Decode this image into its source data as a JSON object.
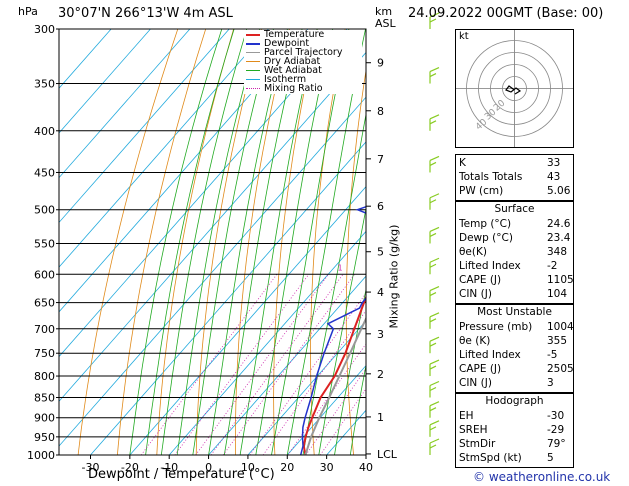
{
  "header": {
    "title": "30°07'N  266°13'W  4m  ASL",
    "date": "24.09.2022  00GMT  (Base: 00)",
    "hpa_label": "hPa",
    "km_label": "km",
    "asl_label": "ASL"
  },
  "footer": {
    "copyright": "© weatheronline.co.uk"
  },
  "colors": {
    "temperature": "#dd2222",
    "dewpoint": "#2233cc",
    "parcel": "#999999",
    "dry_adiabat": "#e08a1a",
    "wet_adiabat": "#22aa22",
    "isotherm": "#22aadd",
    "mixing_ratio": "#cc22aa",
    "wind": "#88cc22"
  },
  "chart_data": {
    "type": "line",
    "xlabel": "Dewpoint / Temperature (°C)",
    "ylabel_right": "Mixing Ratio (g/kg)",
    "x_ticks": [
      -30,
      -20,
      -10,
      0,
      10,
      20,
      30,
      40
    ],
    "xlim": [
      -38,
      40
    ],
    "pressure_levels": [
      300,
      350,
      400,
      450,
      500,
      550,
      600,
      650,
      700,
      750,
      800,
      850,
      900,
      950,
      1000
    ],
    "ylim": [
      300,
      1000
    ],
    "km_ticks": [
      {
        "label": "9",
        "p": 330
      },
      {
        "label": "8",
        "p": 378
      },
      {
        "label": "7",
        "p": 433
      },
      {
        "label": "6",
        "p": 495
      },
      {
        "label": "5",
        "p": 563
      },
      {
        "label": "4",
        "p": 631
      },
      {
        "label": "3",
        "p": 710
      },
      {
        "label": "2",
        "p": 795
      },
      {
        "label": "1",
        "p": 898
      },
      {
        "label": "LCL",
        "p": 997
      }
    ],
    "mixing_ratio_labels": [
      {
        "label": "1",
        "t": -7
      },
      {
        "label": "2",
        "t": 2
      },
      {
        "label": "3",
        "t": 7.5
      },
      {
        "label": "4",
        "t": 11
      },
      {
        "label": "5",
        "t": 14.5
      },
      {
        "label": "8",
        "t": 20.5
      },
      {
        "label": "10",
        "t": 24
      },
      {
        "label": "15",
        "t": 30
      },
      {
        "label": "20",
        "t": 34
      },
      {
        "label": "25",
        "t": 37
      }
    ],
    "legend": [
      "Temperature",
      "Dewpoint",
      "Parcel Trajectory",
      "Dry Adiabat",
      "Wet Adiabat",
      "Isotherm",
      "Mixing Ratio"
    ],
    "series": [
      {
        "name": "Temperature",
        "points": [
          [
            1000,
            24.6
          ],
          [
            975,
            22.2
          ],
          [
            950,
            20.6
          ],
          [
            925,
            19.2
          ],
          [
            900,
            18.0
          ],
          [
            850,
            15.6
          ],
          [
            800,
            14.4
          ],
          [
            750,
            12.0
          ],
          [
            700,
            8.8
          ],
          [
            650,
            5.4
          ],
          [
            600,
            2.0
          ],
          [
            550,
            -2.0
          ],
          [
            500,
            -6.5
          ],
          [
            450,
            -12.0
          ],
          [
            400,
            -18.0
          ],
          [
            350,
            -25.0
          ],
          [
            300,
            -33.0
          ]
        ]
      },
      {
        "name": "Dewpoint",
        "points": [
          [
            1000,
            23.4
          ],
          [
            975,
            22.0
          ],
          [
            950,
            19.8
          ],
          [
            925,
            17.8
          ],
          [
            900,
            16.2
          ],
          [
            850,
            13.2
          ],
          [
            800,
            9.8
          ],
          [
            750,
            6.6
          ],
          [
            700,
            3.5
          ],
          [
            690,
            1.0
          ],
          [
            660,
            5.5
          ],
          [
            650,
            5.0
          ],
          [
            600,
            4.5
          ],
          [
            560,
            1.0
          ],
          [
            550,
            -4.0
          ],
          [
            520,
            -5.0
          ],
          [
            500,
            -17.0
          ],
          [
            450,
            2.0
          ],
          [
            420,
            -16.0
          ],
          [
            400,
            -11.0
          ],
          [
            395,
            -20.0
          ],
          [
            350,
            -28.0
          ],
          [
            300,
            -31.0
          ]
        ]
      },
      {
        "name": "Parcel Trajectory",
        "points": [
          [
            1000,
            24.6
          ],
          [
            950,
            22.0
          ],
          [
            900,
            19.8
          ],
          [
            850,
            17.8
          ],
          [
            800,
            15.6
          ],
          [
            750,
            13.2
          ],
          [
            700,
            10.6
          ],
          [
            650,
            7.8
          ],
          [
            600,
            4.6
          ],
          [
            550,
            1.0
          ],
          [
            500,
            -3.2
          ],
          [
            450,
            -8.0
          ],
          [
            400,
            -13.5
          ]
        ]
      }
    ]
  },
  "hodograph": {
    "label": "kt",
    "ring_labels": [
      "40",
      "30",
      "20"
    ]
  },
  "indices": {
    "rows": [
      {
        "k": "K",
        "v": "33"
      },
      {
        "k": "Totals Totals",
        "v": "43"
      },
      {
        "k": "PW (cm)",
        "v": "5.06"
      }
    ]
  },
  "surface": {
    "title": "Surface",
    "rows": [
      {
        "k": "Temp (°C)",
        "v": "24.6"
      },
      {
        "k": "Dewp (°C)",
        "v": "23.4"
      },
      {
        "k": "θe(K)",
        "v": "348"
      },
      {
        "k": "Lifted Index",
        "v": "-2"
      },
      {
        "k": "CAPE (J)",
        "v": "1105"
      },
      {
        "k": "CIN (J)",
        "v": "104"
      }
    ]
  },
  "most_unstable": {
    "title": "Most Unstable",
    "rows": [
      {
        "k": "Pressure (mb)",
        "v": "1004"
      },
      {
        "k": "θe (K)",
        "v": "355"
      },
      {
        "k": "Lifted Index",
        "v": "-5"
      },
      {
        "k": "CAPE (J)",
        "v": "2505"
      },
      {
        "k": "CIN (J)",
        "v": "3"
      }
    ]
  },
  "hodograph_table": {
    "title": "Hodograph",
    "rows": [
      {
        "k": "EH",
        "v": "-30"
      },
      {
        "k": "SREH",
        "v": "-29"
      },
      {
        "k": "StmDir",
        "v": "79°"
      },
      {
        "k": "StmSpd (kt)",
        "v": "5"
      }
    ]
  }
}
